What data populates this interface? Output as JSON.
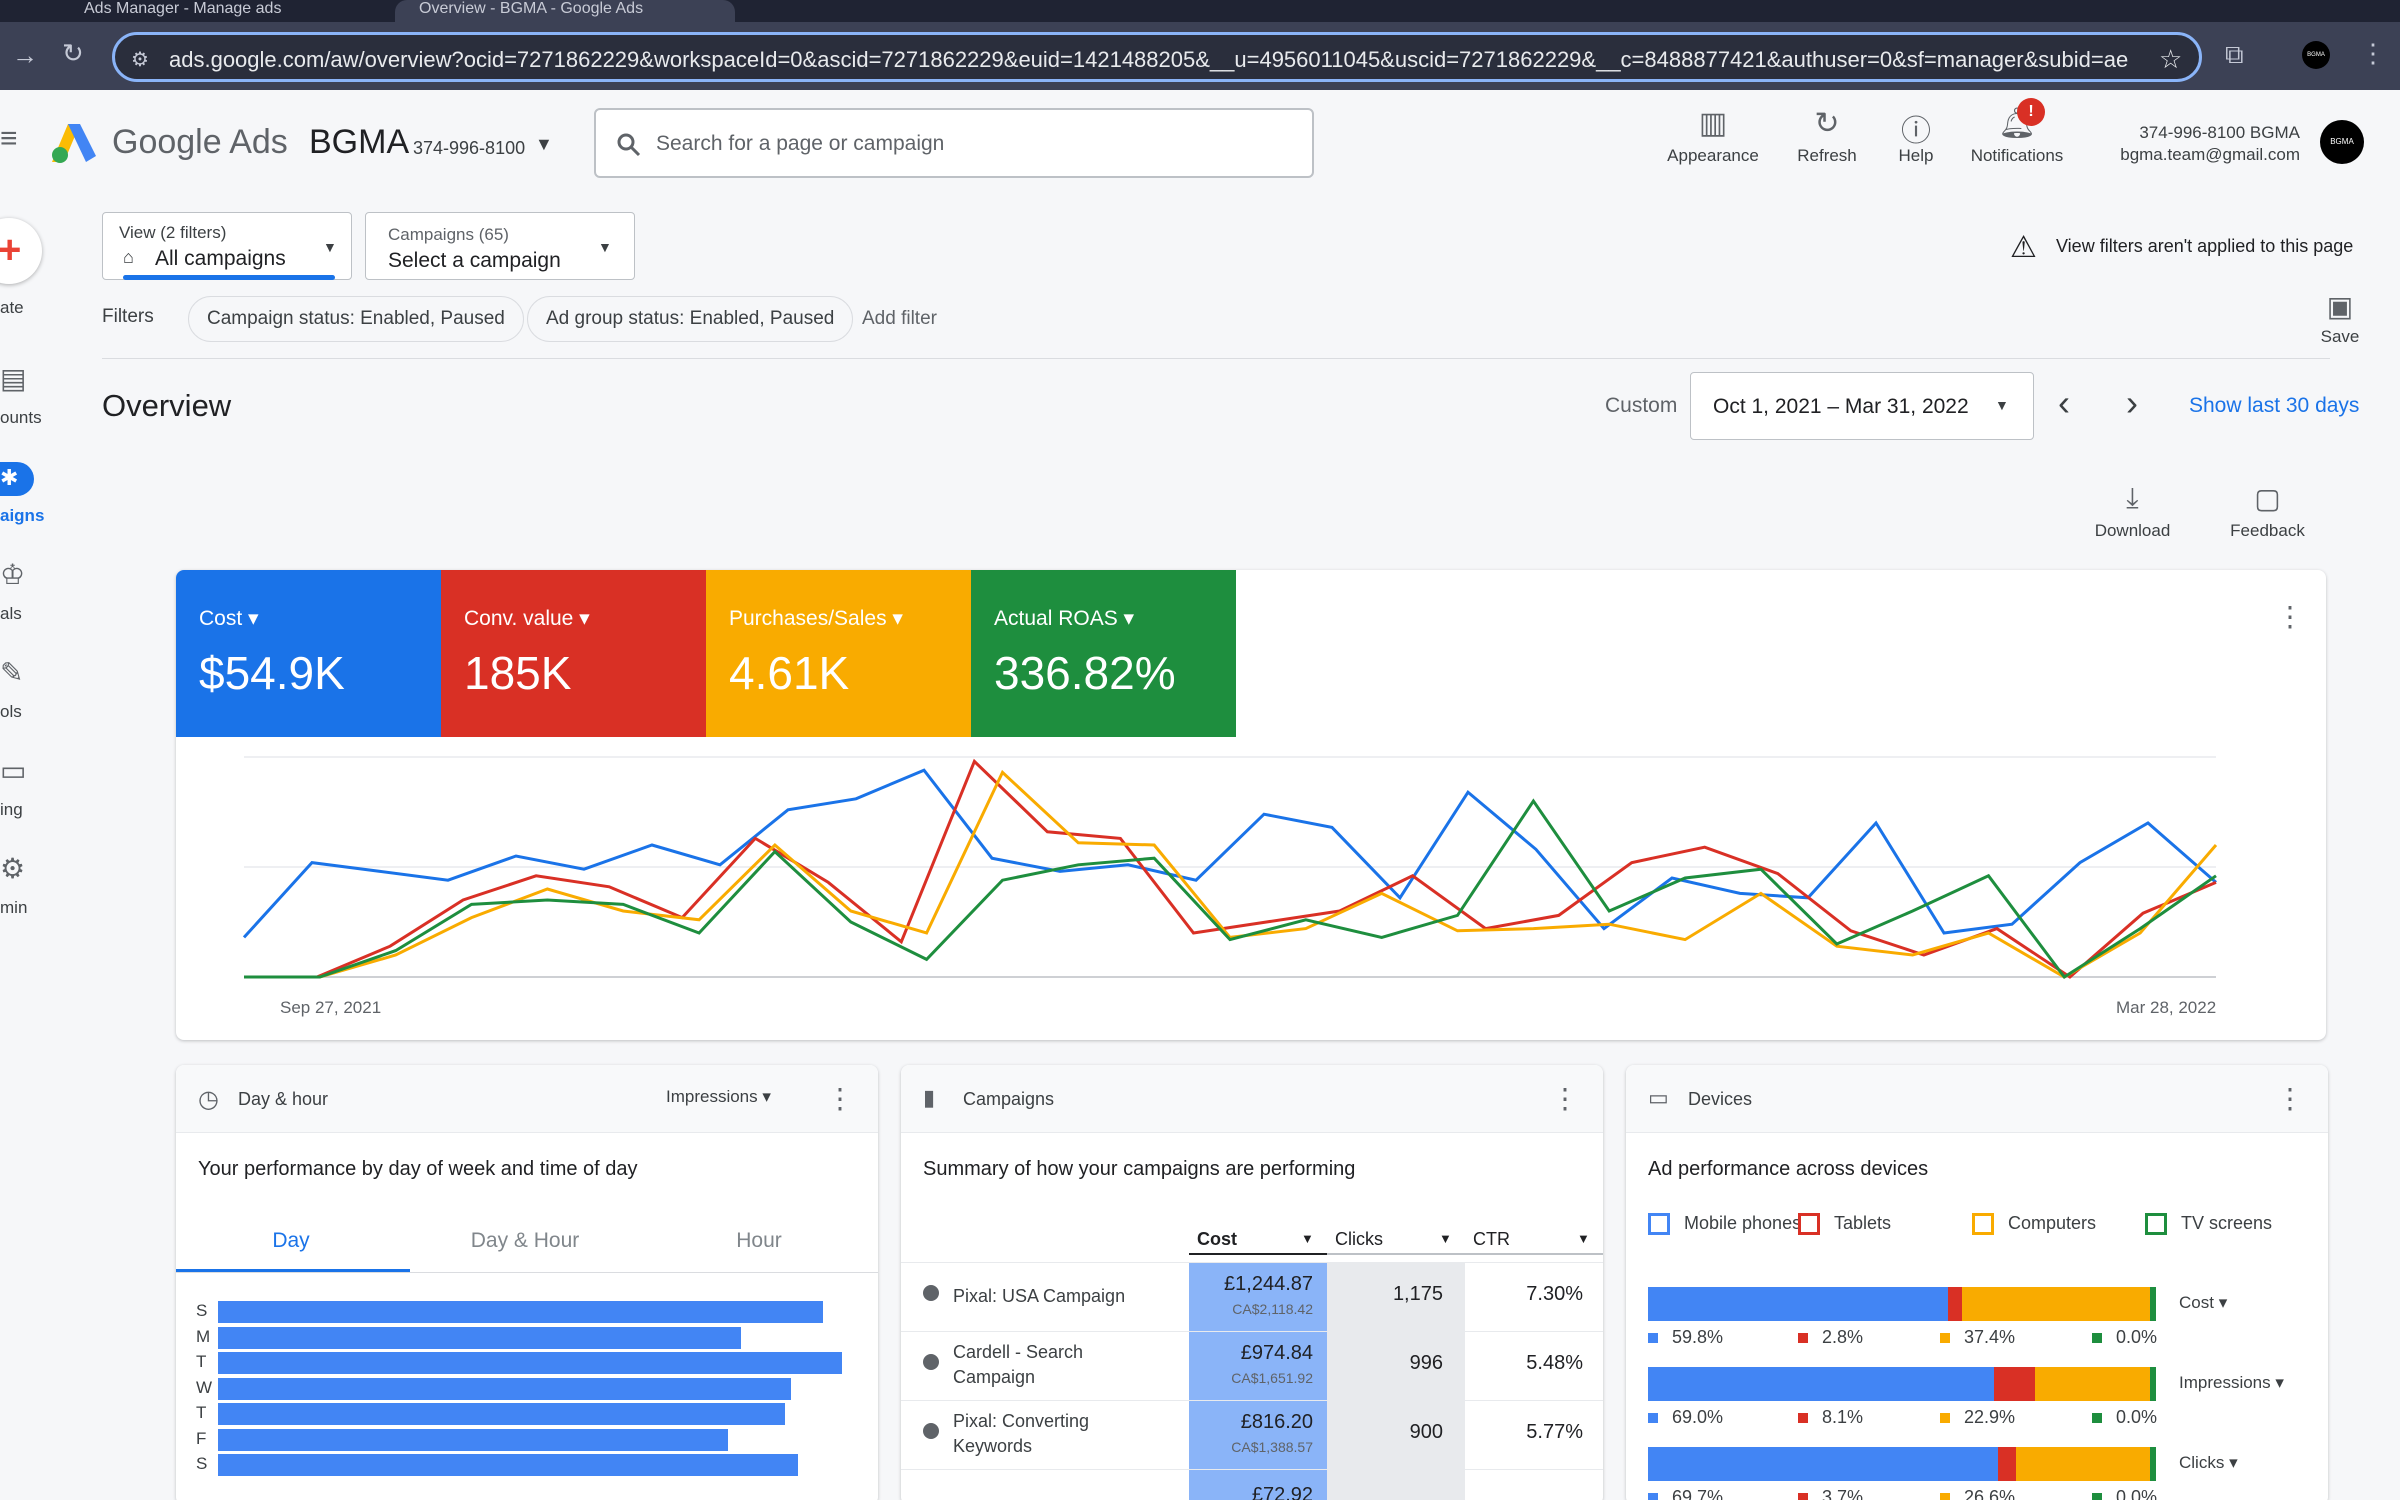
{
  "browser": {
    "tabs": [
      "Ads Manager - Manage ads",
      "Overview - BGMA - Google Ads"
    ],
    "url": "ads.google.com/aw/overview?ocid=7271862229&workspaceId=0&ascid=7271862229&euid=1421488205&__u=4956011045&uscid=7271862229&__c=8488877421&authuser=0&sf=manager&subid=ae-en...",
    "profile_avatar": "BGMA"
  },
  "header": {
    "logo": "Google Ads",
    "account_name": "BGMA",
    "account_id": "374-996-8100",
    "search_placeholder": "Search for a page or campaign",
    "buttons": {
      "appearance": "Appearance",
      "refresh": "Refresh",
      "help": "Help",
      "notifications": "Notifications"
    },
    "notification_badge": "!",
    "account_line1": "374-996-8100 BGMA",
    "account_line2": "bgma.team@gmail.com",
    "avatar": "BGMA"
  },
  "leftnav": {
    "items": [
      "ate",
      "ounts",
      "aigns",
      "als",
      "ols",
      "ing",
      "min"
    ],
    "active": "aigns"
  },
  "filterbar": {
    "view_label": "View (2 filters)",
    "view_value": "All campaigns",
    "campaigns_label": "Campaigns (65)",
    "campaigns_value": "Select a campaign",
    "warning": "View filters aren't applied to this page",
    "filters_label": "Filters",
    "filter_pills": [
      "Campaign status: Enabled, Paused",
      "Ad group status: Enabled, Paused"
    ],
    "add_filter": "Add filter",
    "save": "Save"
  },
  "overview": {
    "title": "Overview",
    "custom_label": "Custom",
    "date_range": "Oct 1, 2021 – Mar 31, 2022",
    "show_last": "Show last 30 days",
    "download": "Download",
    "feedback": "Feedback"
  },
  "scorecard": {
    "metrics": [
      {
        "label": "Cost",
        "value": "$54.9K",
        "color": "#1a73e8"
      },
      {
        "label": "Conv. value",
        "value": "185K",
        "color": "#d93025"
      },
      {
        "label": "Purchases/Sales",
        "value": "4.61K",
        "color": "#f9ab00"
      },
      {
        "label": "Actual ROAS",
        "value": "336.82%",
        "color": "#1e8e3e"
      }
    ]
  },
  "chart_data": {
    "type": "line",
    "x_start_label": "Sep 27, 2021",
    "x_end_label": "Mar 28, 2022",
    "series": [
      {
        "name": "Cost",
        "color": "#1a73e8",
        "values": [
          18,
          52,
          48,
          44,
          55,
          49,
          60,
          51,
          76,
          81,
          94,
          54,
          48,
          51,
          44,
          74,
          68,
          36,
          84,
          58,
          22,
          45,
          38,
          36,
          70,
          20,
          24,
          52,
          70,
          43
        ]
      },
      {
        "name": "Conv. value",
        "color": "#d93025",
        "values": [
          0,
          0,
          14,
          35,
          46,
          41,
          27,
          63,
          43,
          16,
          98,
          66,
          63,
          20,
          25,
          30,
          46,
          22,
          28,
          52,
          59,
          47,
          21,
          10,
          22,
          0,
          29,
          43
        ]
      },
      {
        "name": "Purchases/Sales",
        "color": "#f9ab00",
        "values": [
          0,
          0,
          10,
          27,
          40,
          30,
          26,
          60,
          30,
          20,
          93,
          61,
          60,
          18,
          22,
          38,
          21,
          22,
          24,
          17,
          38,
          14,
          10,
          20,
          0,
          20,
          60
        ]
      },
      {
        "name": "Actual ROAS",
        "color": "#1e8e3e",
        "values": [
          0,
          0,
          12,
          33,
          35,
          33,
          20,
          57,
          25,
          8,
          44,
          51,
          54,
          17,
          26,
          18,
          28,
          80,
          30,
          45,
          49,
          15,
          30,
          46,
          0,
          22,
          46
        ]
      }
    ]
  },
  "dayhour": {
    "title": "Day & hour",
    "metric": "Impressions",
    "subtitle": "Your performance by day of week and time of day",
    "tabs": [
      "Day",
      "Day & Hour",
      "Hour"
    ],
    "active_tab": "Day",
    "days": [
      "S",
      "M",
      "T",
      "W",
      "T",
      "F",
      "S"
    ],
    "values": [
      0.96,
      0.83,
      0.99,
      0.91,
      0.9,
      0.81,
      0.92
    ]
  },
  "campaigns": {
    "title": "Campaigns",
    "subtitle": "Summary of how your campaigns are performing",
    "columns": [
      "Cost",
      "Clicks",
      "CTR"
    ],
    "rows": [
      {
        "name": "Pixal: USA Campaign",
        "cost": "£1,244.87",
        "cost_sub": "CA$2,118.42",
        "clicks": "1,175",
        "ctr": "7.30%"
      },
      {
        "name": "Cardell - Search Campaign",
        "cost": "£974.84",
        "cost_sub": "CA$1,651.92",
        "clicks": "996",
        "ctr": "5.48%"
      },
      {
        "name": "Pixal: Converting Keywords",
        "cost": "£816.20",
        "cost_sub": "CA$1,388.57",
        "clicks": "900",
        "ctr": "5.77%"
      },
      {
        "name": "",
        "cost": "£72.92",
        "cost_sub": "",
        "clicks": "",
        "ctr": ""
      }
    ]
  },
  "devices": {
    "title": "Devices",
    "subtitle": "Ad performance across devices",
    "legend": [
      {
        "label": "Mobile phones",
        "color": "#4285f4"
      },
      {
        "label": "Tablets",
        "color": "#d93025"
      },
      {
        "label": "Computers",
        "color": "#f9ab00"
      },
      {
        "label": "TV screens",
        "color": "#1e8e3e"
      }
    ],
    "rows": [
      {
        "metric": "Cost",
        "shares": [
          59.8,
          2.8,
          37.4,
          0.0
        ],
        "labels": [
          "59.8%",
          "2.8%",
          "37.4%",
          "0.0%"
        ]
      },
      {
        "metric": "Impressions",
        "shares": [
          69.0,
          8.1,
          22.9,
          0.0
        ],
        "labels": [
          "69.0%",
          "8.1%",
          "22.9%",
          "0.0%"
        ]
      },
      {
        "metric": "Clicks",
        "shares": [
          69.7,
          3.7,
          26.6,
          0.0
        ],
        "labels": [
          "69.7%",
          "3.7%",
          "26.6%",
          "0.0%"
        ]
      }
    ]
  }
}
